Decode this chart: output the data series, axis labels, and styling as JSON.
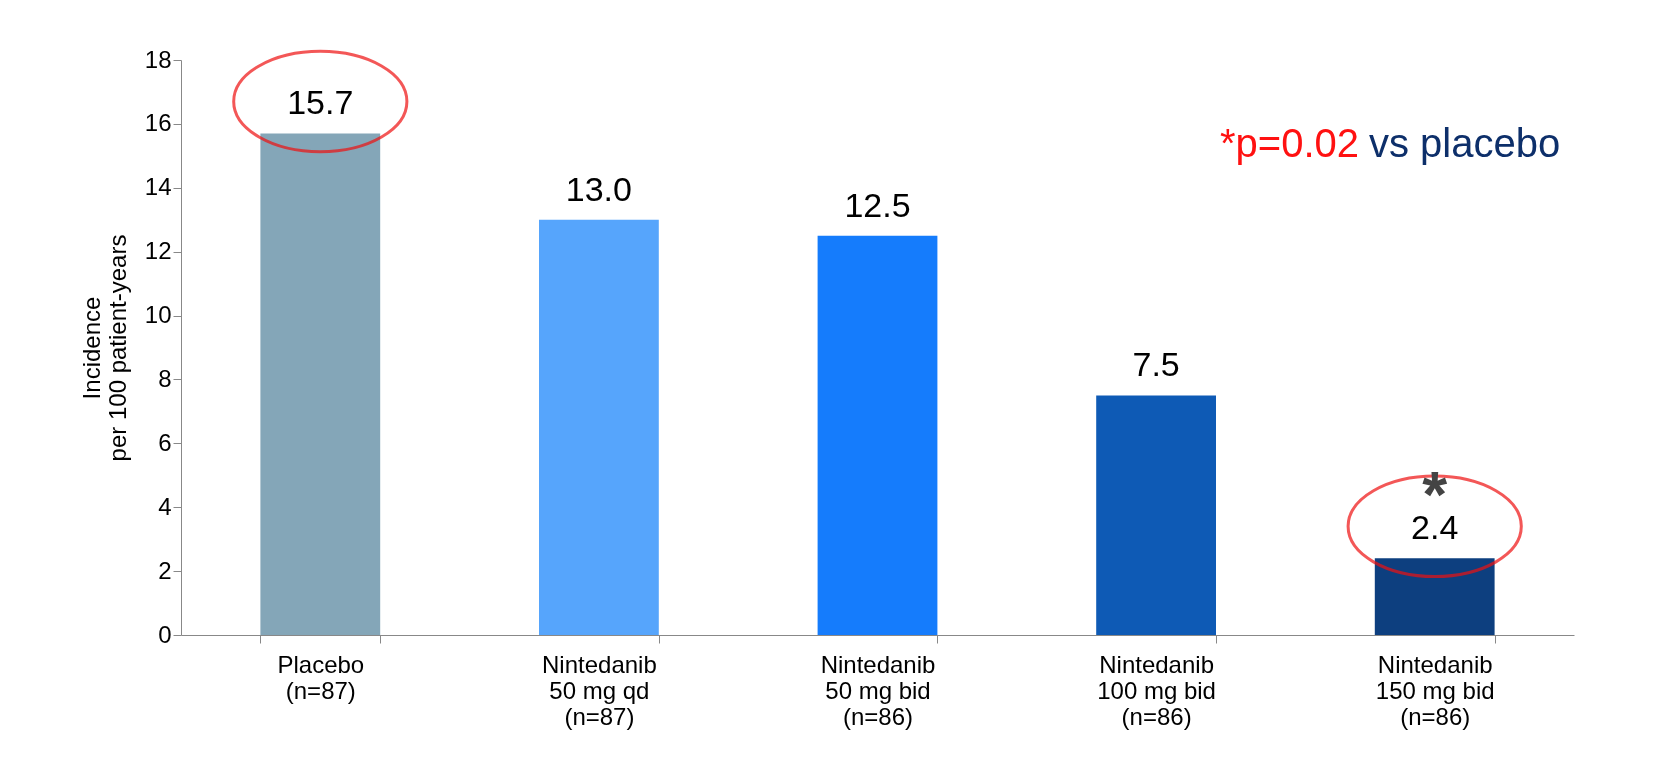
{
  "chart_data": {
    "type": "bar",
    "ylabel": "Incidence\nper 100 patient-years",
    "categories": [
      "Placebo\n(n=87)",
      "Nintedanib\n50 mg qd\n(n=87)",
      "Nintedanib\n50 mg bid\n(n=86)",
      "Nintedanib\n100 mg bid\n(n=86)",
      "Nintedanib\n150 mg bid\n(n=86)"
    ],
    "values": [
      15.7,
      13.0,
      12.5,
      7.5,
      2.4
    ],
    "value_labels": [
      "15.7",
      "13.0",
      "12.5",
      "7.5",
      "2.4"
    ],
    "colors": [
      "#84a6b8",
      "#56a5fc",
      "#157cfc",
      "#0e5ab5",
      "#0d3f7f"
    ],
    "ylim": [
      0,
      18
    ],
    "yticks": [
      0,
      2,
      4,
      6,
      8,
      10,
      12,
      14,
      16,
      18
    ],
    "grid": false,
    "annotations": [
      "*",
      "*p=0.02",
      "vs placebo"
    ]
  }
}
